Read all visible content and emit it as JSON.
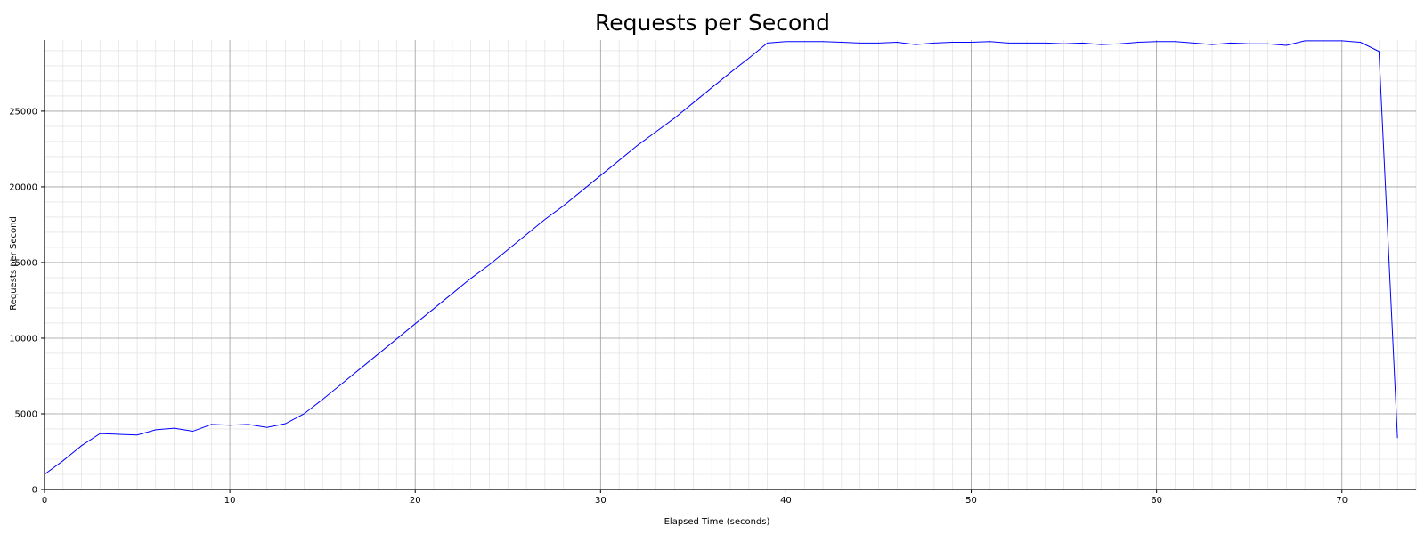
{
  "chart_data": {
    "type": "line",
    "title": "Requests per Second",
    "xlabel": "Elapsed Time (seconds)",
    "ylabel": "Requests per Second",
    "xlim": [
      0,
      74
    ],
    "ylim": [
      0,
      29700
    ],
    "x_ticks": [
      0,
      10,
      20,
      30,
      40,
      50,
      60,
      70
    ],
    "y_ticks": [
      0,
      5000,
      10000,
      15000,
      20000,
      25000
    ],
    "x_minor_step": 1,
    "y_minor_step": 1000,
    "grid": true,
    "legend": "none",
    "colors": {
      "line": "#0000ff",
      "grid_major": "#a0a0a0",
      "grid_minor": "#dcdcdc",
      "axis": "#000000"
    },
    "series": [
      {
        "x": [
          0,
          1,
          2,
          3,
          4,
          5,
          6,
          7,
          8,
          9,
          10,
          11,
          12,
          13,
          14,
          15,
          16,
          17,
          18,
          19,
          20,
          21,
          22,
          23,
          24,
          25,
          26,
          27,
          28,
          29,
          30,
          31,
          32,
          33,
          34,
          35,
          36,
          37,
          38,
          39,
          40,
          41,
          42,
          43,
          44,
          45,
          46,
          47,
          48,
          49,
          50,
          51,
          52,
          53,
          54,
          55,
          56,
          57,
          58,
          59,
          60,
          61,
          62,
          63,
          64,
          65,
          66,
          67,
          68,
          69,
          70,
          71,
          72,
          73
        ],
        "values": [
          1000,
          1900,
          2900,
          3700,
          3650,
          3600,
          3950,
          4050,
          3850,
          4300,
          4250,
          4300,
          4100,
          4350,
          5000,
          5950,
          6950,
          7950,
          8950,
          9950,
          10950,
          11950,
          12950,
          13950,
          14850,
          15850,
          16850,
          17850,
          18750,
          19750,
          20750,
          21750,
          22750,
          23650,
          24550,
          25550,
          26550,
          27550,
          28500,
          29500,
          29600,
          29600,
          29600,
          29550,
          29500,
          29500,
          29550,
          29400,
          29500,
          29550,
          29550,
          29600,
          29500,
          29500,
          29500,
          29450,
          29500,
          29400,
          29450,
          29550,
          29600,
          29600,
          29500,
          29400,
          29500,
          29450,
          29450,
          29350,
          29650,
          29650,
          29650,
          29550,
          28950,
          3400
        ]
      }
    ]
  }
}
